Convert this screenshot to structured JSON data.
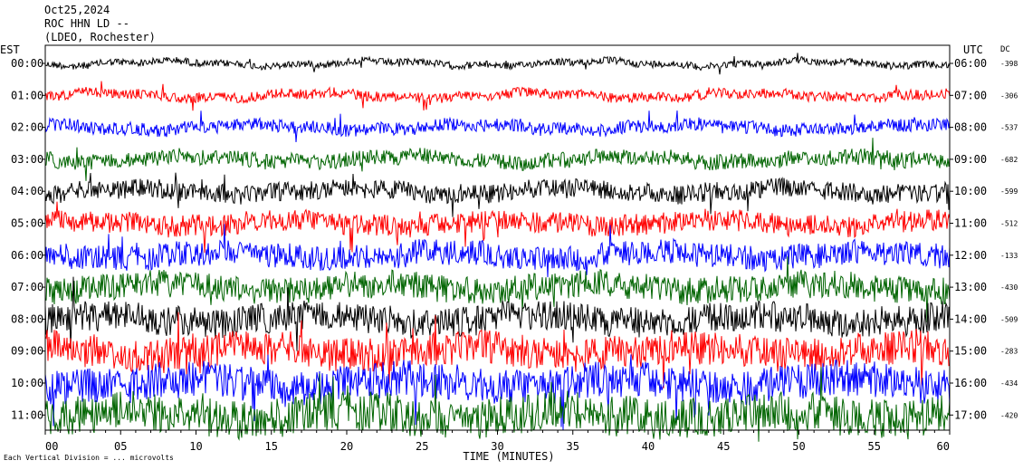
{
  "header": {
    "date": "Oct25,2024",
    "station": "ROC HHN LD --",
    "network": "(LDEO, Rochester)"
  },
  "chart_data": {
    "type": "line",
    "title": "",
    "left_axis_label": "EST",
    "right_axis_label": "UTC",
    "dc_label": "DC",
    "xlabel": "TIME (MINUTES)",
    "x_ticks": [
      "00",
      "05",
      "10",
      "15",
      "20",
      "25",
      "30",
      "35",
      "40",
      "45",
      "50",
      "55",
      "60"
    ],
    "xlim": [
      0,
      60
    ],
    "footer_note": "Each Vertical Division = ... microvolts",
    "trace_colors": [
      "#000000",
      "#ff0000",
      "#0000ff",
      "#006400"
    ],
    "rows": [
      {
        "est": "00:00",
        "utc": "06:00",
        "dc": "-398",
        "color": "#000000"
      },
      {
        "est": "01:00",
        "utc": "07:00",
        "dc": "-306",
        "color": "#ff0000"
      },
      {
        "est": "02:00",
        "utc": "08:00",
        "dc": "-537",
        "color": "#0000ff"
      },
      {
        "est": "03:00",
        "utc": "09:00",
        "dc": "-682",
        "color": "#006400"
      },
      {
        "est": "04:00",
        "utc": "10:00",
        "dc": "-599",
        "color": "#000000"
      },
      {
        "est": "05:00",
        "utc": "11:00",
        "dc": "-512",
        "color": "#ff0000"
      },
      {
        "est": "06:00",
        "utc": "12:00",
        "dc": "-133",
        "color": "#0000ff"
      },
      {
        "est": "07:00",
        "utc": "13:00",
        "dc": "-430",
        "color": "#006400"
      },
      {
        "est": "08:00",
        "utc": "14:00",
        "dc": "-509",
        "color": "#000000"
      },
      {
        "est": "09:00",
        "utc": "15:00",
        "dc": "-283",
        "color": "#ff0000"
      },
      {
        "est": "10:00",
        "utc": "16:00",
        "dc": "-434",
        "color": "#0000ff"
      },
      {
        "est": "11:00",
        "utc": "17:00",
        "dc": "-420",
        "color": "#006400"
      }
    ]
  }
}
